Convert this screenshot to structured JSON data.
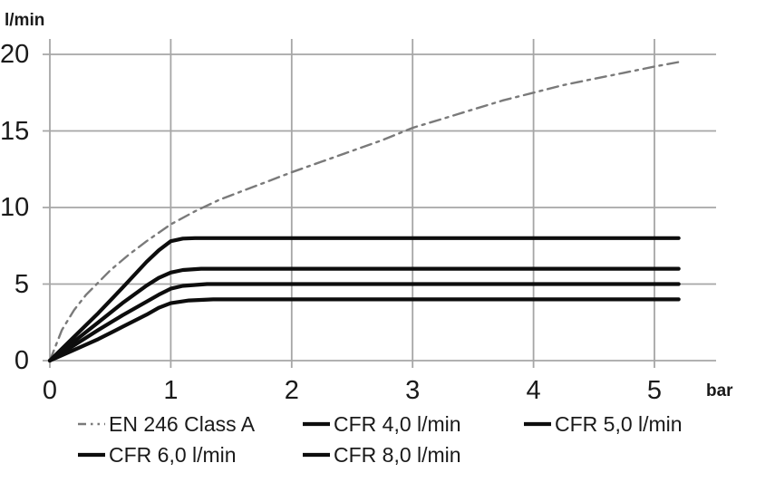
{
  "labels": {
    "y_unit": "l/min",
    "x_unit": "bar"
  },
  "colors": {
    "background": "#ffffff",
    "grid": "#a6a6a6",
    "axis": "#a6a6a6",
    "en_line": "#7a7a7a",
    "cfr_line": "#0d0d0d",
    "text": "#1a1a1a"
  },
  "legend": {
    "items": [
      {
        "label": "EN 246 Class A",
        "marker": "dashdotdot",
        "color": "#7a7a7a"
      },
      {
        "label": "CFR 4,0 l/min",
        "marker": "solid",
        "color": "#0d0d0d"
      },
      {
        "label": "CFR 5,0 l/min",
        "marker": "solid",
        "color": "#0d0d0d"
      },
      {
        "label": "CFR 6,0 l/min",
        "marker": "solid",
        "color": "#0d0d0d"
      },
      {
        "label": "CFR 8,0 l/min",
        "marker": "solid",
        "color": "#0d0d0d"
      }
    ]
  },
  "chart_data": {
    "type": "line",
    "title": "",
    "xlabel": "bar",
    "ylabel": "l/min",
    "xlim": [
      0,
      5.5
    ],
    "ylim": [
      0,
      21
    ],
    "x_ticks": [
      0,
      1,
      2,
      3,
      4,
      5
    ],
    "y_ticks": [
      0,
      5,
      10,
      15,
      20
    ],
    "grid": true,
    "legend_position": "bottom",
    "series": [
      {
        "name": "EN 246 Class A",
        "style": "dashdotdot",
        "color": "#7a7a7a",
        "width": 2.4,
        "points": [
          [
            0,
            0
          ],
          [
            0.1,
            2.0
          ],
          [
            0.2,
            3.3
          ],
          [
            0.3,
            4.3
          ],
          [
            0.4,
            5.1
          ],
          [
            0.5,
            5.9
          ],
          [
            0.65,
            6.9
          ],
          [
            0.8,
            7.8
          ],
          [
            1.0,
            8.9
          ],
          [
            1.2,
            9.75
          ],
          [
            1.4,
            10.5
          ],
          [
            1.6,
            11.1
          ],
          [
            1.8,
            11.7
          ],
          [
            2.0,
            12.3
          ],
          [
            2.25,
            13.0
          ],
          [
            2.5,
            13.7
          ],
          [
            2.75,
            14.4
          ],
          [
            3.0,
            15.2
          ],
          [
            3.25,
            15.8
          ],
          [
            3.5,
            16.4
          ],
          [
            3.75,
            17.0
          ],
          [
            4.0,
            17.5
          ],
          [
            4.25,
            18.0
          ],
          [
            4.5,
            18.4
          ],
          [
            4.75,
            18.8
          ],
          [
            5.0,
            19.2
          ],
          [
            5.2,
            19.5
          ]
        ]
      },
      {
        "name": "CFR 4,0 l/min",
        "style": "solid",
        "color": "#0d0d0d",
        "width": 4.2,
        "points": [
          [
            0,
            0
          ],
          [
            0.2,
            0.7
          ],
          [
            0.4,
            1.4
          ],
          [
            0.6,
            2.2
          ],
          [
            0.8,
            3.0
          ],
          [
            0.9,
            3.45
          ],
          [
            1.0,
            3.75
          ],
          [
            1.15,
            3.93
          ],
          [
            1.35,
            4.0
          ],
          [
            2,
            4.0
          ],
          [
            3,
            4.0
          ],
          [
            4,
            4.0
          ],
          [
            5.2,
            4.0
          ]
        ]
      },
      {
        "name": "CFR 5,0 l/min",
        "style": "solid",
        "color": "#0d0d0d",
        "width": 4.2,
        "points": [
          [
            0,
            0
          ],
          [
            0.2,
            1.0
          ],
          [
            0.4,
            2.0
          ],
          [
            0.6,
            2.95
          ],
          [
            0.8,
            3.85
          ],
          [
            0.9,
            4.3
          ],
          [
            1.0,
            4.7
          ],
          [
            1.1,
            4.88
          ],
          [
            1.3,
            5.0
          ],
          [
            2,
            5.0
          ],
          [
            3,
            5.0
          ],
          [
            4,
            5.0
          ],
          [
            5.2,
            5.0
          ]
        ]
      },
      {
        "name": "CFR 6,0 l/min",
        "style": "solid",
        "color": "#0d0d0d",
        "width": 4.2,
        "points": [
          [
            0,
            0
          ],
          [
            0.2,
            1.25
          ],
          [
            0.4,
            2.5
          ],
          [
            0.6,
            3.75
          ],
          [
            0.8,
            4.9
          ],
          [
            0.9,
            5.4
          ],
          [
            1.0,
            5.75
          ],
          [
            1.1,
            5.92
          ],
          [
            1.25,
            6.0
          ],
          [
            2,
            6.0
          ],
          [
            3,
            6.0
          ],
          [
            4,
            6.0
          ],
          [
            5.2,
            6.0
          ]
        ]
      },
      {
        "name": "CFR 8,0 l/min",
        "style": "solid",
        "color": "#0d0d0d",
        "width": 4.2,
        "points": [
          [
            0,
            0
          ],
          [
            0.2,
            1.55
          ],
          [
            0.4,
            3.1
          ],
          [
            0.6,
            4.75
          ],
          [
            0.8,
            6.45
          ],
          [
            0.9,
            7.2
          ],
          [
            1.0,
            7.8
          ],
          [
            1.1,
            7.97
          ],
          [
            1.2,
            8.0
          ],
          [
            2,
            8.0
          ],
          [
            3,
            8.0
          ],
          [
            4,
            8.0
          ],
          [
            5.2,
            8.0
          ]
        ]
      }
    ]
  }
}
